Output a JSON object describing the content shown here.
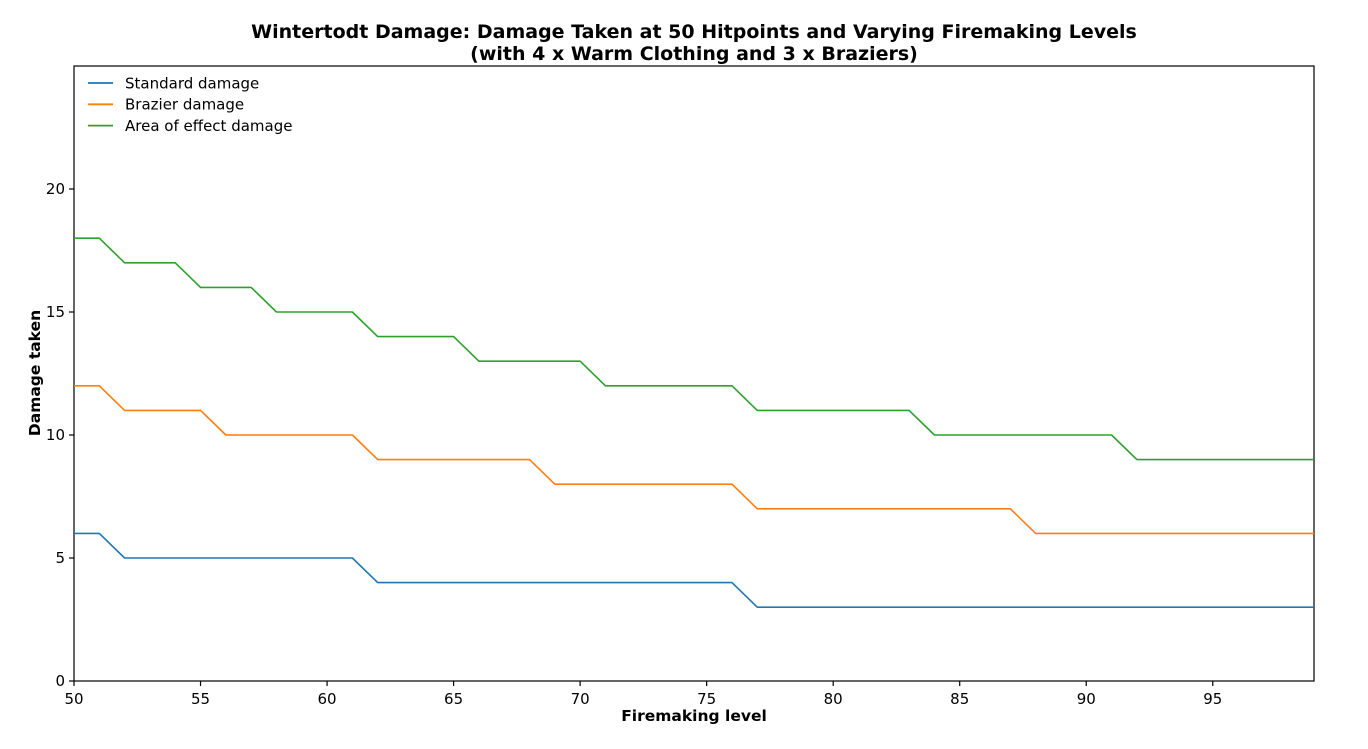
{
  "chart_data": {
    "type": "line",
    "title": "Wintertodt Damage: Damage Taken at 50 Hitpoints and Varying Firemaking Levels",
    "subtitle": "(with 4 x Warm Clothing and 3 x Braziers)",
    "xlabel": "Firemaking level",
    "ylabel": "Damage taken",
    "xlim": [
      50,
      99
    ],
    "ylim": [
      0,
      25
    ],
    "xticks": [
      50,
      55,
      60,
      65,
      70,
      75,
      80,
      85,
      90,
      95
    ],
    "yticks": [
      0,
      5,
      10,
      15,
      20
    ],
    "grid": false,
    "legend_position": "upper-left",
    "x": [
      50,
      51,
      52,
      53,
      54,
      55,
      56,
      57,
      58,
      59,
      60,
      61,
      62,
      63,
      64,
      65,
      66,
      67,
      68,
      69,
      70,
      71,
      72,
      73,
      74,
      75,
      76,
      77,
      78,
      79,
      80,
      81,
      82,
      83,
      84,
      85,
      86,
      87,
      88,
      89,
      90,
      91,
      92,
      93,
      94,
      95,
      96,
      97,
      98,
      99
    ],
    "series": [
      {
        "name": "Standard damage",
        "slug": "standard-damage",
        "color": "#1f77b4",
        "values": [
          6,
          6,
          5,
          5,
          5,
          5,
          5,
          5,
          5,
          5,
          5,
          5,
          4,
          4,
          4,
          4,
          4,
          4,
          4,
          4,
          4,
          4,
          4,
          4,
          4,
          4,
          4,
          3,
          3,
          3,
          3,
          3,
          3,
          3,
          3,
          3,
          3,
          3,
          3,
          3,
          3,
          3,
          3,
          3,
          3,
          3,
          3,
          3,
          3,
          3
        ]
      },
      {
        "name": "Brazier damage",
        "slug": "brazier-damage",
        "color": "#ff7f0e",
        "values": [
          12,
          12,
          11,
          11,
          11,
          11,
          10,
          10,
          10,
          10,
          10,
          10,
          9,
          9,
          9,
          9,
          9,
          9,
          9,
          8,
          8,
          8,
          8,
          8,
          8,
          8,
          8,
          7,
          7,
          7,
          7,
          7,
          7,
          7,
          7,
          7,
          7,
          7,
          6,
          6,
          6,
          6,
          6,
          6,
          6,
          6,
          6,
          6,
          6,
          6
        ]
      },
      {
        "name": "Area of effect damage",
        "slug": "area-of-effect-damage",
        "color": "#2ca02c",
        "values": [
          18,
          18,
          17,
          17,
          17,
          16,
          16,
          16,
          15,
          15,
          15,
          15,
          14,
          14,
          14,
          14,
          13,
          13,
          13,
          13,
          13,
          12,
          12,
          12,
          12,
          12,
          12,
          11,
          11,
          11,
          11,
          11,
          11,
          11,
          10,
          10,
          10,
          10,
          10,
          10,
          10,
          10,
          9,
          9,
          9,
          9,
          9,
          9,
          9,
          9
        ]
      }
    ]
  }
}
